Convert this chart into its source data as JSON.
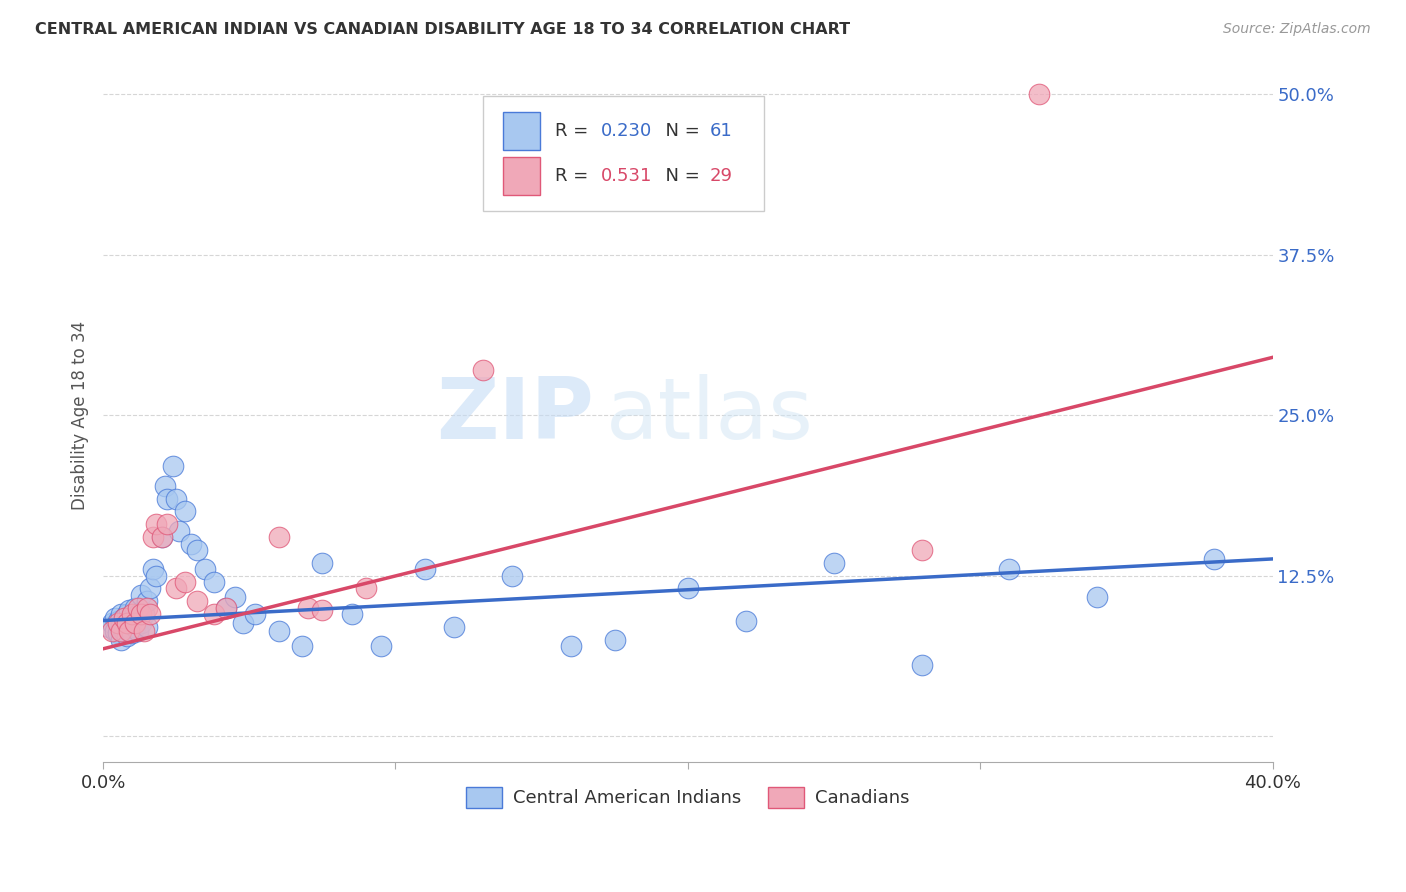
{
  "title": "CENTRAL AMERICAN INDIAN VS CANADIAN DISABILITY AGE 18 TO 34 CORRELATION CHART",
  "source": "Source: ZipAtlas.com",
  "ylabel": "Disability Age 18 to 34",
  "xlim": [
    0.0,
    0.4
  ],
  "ylim": [
    -0.02,
    0.52
  ],
  "xticks": [
    0.0,
    0.1,
    0.2,
    0.3,
    0.4
  ],
  "xtick_labels": [
    "0.0%",
    "",
    "",
    "",
    "40.0%"
  ],
  "yticks": [
    0.0,
    0.125,
    0.25,
    0.375,
    0.5
  ],
  "ytick_labels": [
    "",
    "12.5%",
    "25.0%",
    "37.5%",
    "50.0%"
  ],
  "blue_R": 0.23,
  "blue_N": 61,
  "pink_R": 0.531,
  "pink_N": 29,
  "blue_color": "#A8C8F0",
  "pink_color": "#F0A8B8",
  "blue_line_color": "#3A6BC8",
  "pink_line_color": "#D84868",
  "blue_edge_color": "#4A7AD8",
  "pink_edge_color": "#E05878",
  "watermark_zip": "ZIP",
  "watermark_atlas": "atlas",
  "legend_label_blue": "Central American Indians",
  "legend_label_pink": "Canadians",
  "blue_x": [
    0.002,
    0.003,
    0.004,
    0.004,
    0.005,
    0.005,
    0.006,
    0.006,
    0.006,
    0.007,
    0.007,
    0.008,
    0.008,
    0.009,
    0.009,
    0.01,
    0.01,
    0.011,
    0.011,
    0.012,
    0.012,
    0.013,
    0.013,
    0.014,
    0.015,
    0.015,
    0.016,
    0.017,
    0.018,
    0.02,
    0.021,
    0.022,
    0.024,
    0.025,
    0.026,
    0.028,
    0.03,
    0.032,
    0.035,
    0.038,
    0.042,
    0.045,
    0.048,
    0.052,
    0.06,
    0.068,
    0.075,
    0.085,
    0.095,
    0.11,
    0.12,
    0.14,
    0.16,
    0.175,
    0.2,
    0.22,
    0.25,
    0.28,
    0.31,
    0.34,
    0.38
  ],
  "blue_y": [
    0.085,
    0.088,
    0.082,
    0.092,
    0.08,
    0.09,
    0.075,
    0.088,
    0.095,
    0.082,
    0.092,
    0.078,
    0.095,
    0.085,
    0.098,
    0.08,
    0.092,
    0.085,
    0.1,
    0.082,
    0.095,
    0.088,
    0.11,
    0.095,
    0.085,
    0.105,
    0.115,
    0.13,
    0.125,
    0.155,
    0.195,
    0.185,
    0.21,
    0.185,
    0.16,
    0.175,
    0.15,
    0.145,
    0.13,
    0.12,
    0.1,
    0.108,
    0.088,
    0.095,
    0.082,
    0.07,
    0.135,
    0.095,
    0.07,
    0.13,
    0.085,
    0.125,
    0.07,
    0.075,
    0.115,
    0.09,
    0.135,
    0.055,
    0.13,
    0.108,
    0.138
  ],
  "pink_x": [
    0.003,
    0.005,
    0.006,
    0.007,
    0.008,
    0.009,
    0.01,
    0.011,
    0.012,
    0.013,
    0.014,
    0.015,
    0.016,
    0.017,
    0.018,
    0.02,
    0.022,
    0.025,
    0.028,
    0.032,
    0.038,
    0.042,
    0.06,
    0.07,
    0.075,
    0.09,
    0.13,
    0.28,
    0.32
  ],
  "pink_y": [
    0.082,
    0.088,
    0.082,
    0.092,
    0.088,
    0.082,
    0.095,
    0.088,
    0.1,
    0.095,
    0.082,
    0.1,
    0.095,
    0.155,
    0.165,
    0.155,
    0.165,
    0.115,
    0.12,
    0.105,
    0.095,
    0.1,
    0.155,
    0.1,
    0.098,
    0.115,
    0.285,
    0.145,
    0.5
  ],
  "blue_line_x0": 0.0,
  "blue_line_x1": 0.4,
  "blue_line_y0": 0.09,
  "blue_line_y1": 0.138,
  "pink_line_x0": 0.0,
  "pink_line_x1": 0.4,
  "pink_line_y0": 0.068,
  "pink_line_y1": 0.295
}
